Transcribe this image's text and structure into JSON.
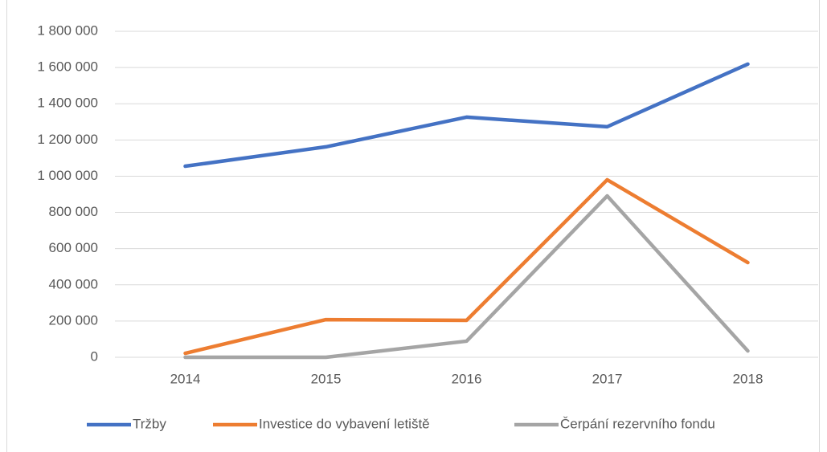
{
  "chart_data": {
    "type": "line",
    "categories": [
      "2014",
      "2015",
      "2016",
      "2017",
      "2018"
    ],
    "series": [
      {
        "name": "Tržby",
        "color": "#4472c4",
        "values": [
          1055000,
          1162000,
          1326000,
          1273000,
          1619000
        ]
      },
      {
        "name": "Investice do vybavení letiště",
        "color": "#ed7d31",
        "values": [
          22000,
          208000,
          204000,
          980000,
          523000
        ]
      },
      {
        "name": "Čerpání rezervního fondu",
        "color": "#a5a5a5",
        "values": [
          0,
          0,
          89000,
          891000,
          35000
        ]
      }
    ],
    "ylim": [
      0,
      1800000
    ],
    "yticks": [
      0,
      {
        "value": 200000,
        "label": "200 000"
      },
      {
        "value": 400000,
        "label": "400 000"
      },
      {
        "value": 600000,
        "label": "600 000"
      },
      {
        "value": 800000,
        "label": "800 000"
      },
      {
        "value": 1000000,
        "label": "1 000 000"
      },
      {
        "value": 1200000,
        "label": "1 200 000"
      },
      {
        "value": 1400000,
        "label": "1 400 000"
      },
      {
        "value": 1600000,
        "label": "1 600 000"
      },
      {
        "value": 1800000,
        "label": "1 800 000"
      }
    ],
    "grid": true,
    "legend": "bottom"
  }
}
